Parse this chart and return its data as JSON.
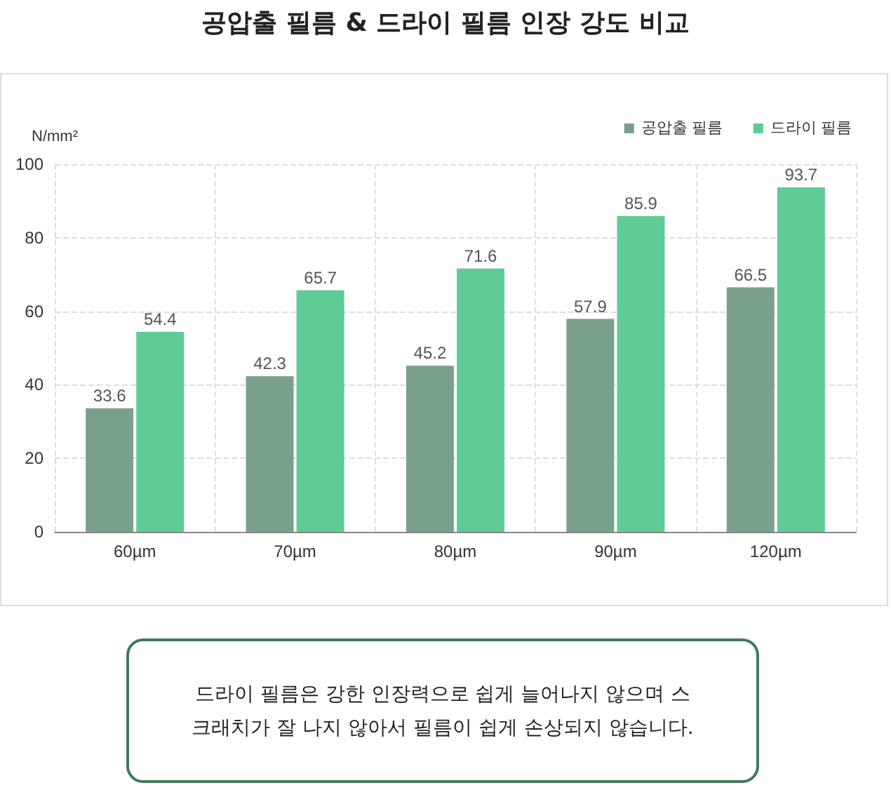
{
  "chart_data": {
    "type": "bar",
    "title": "공압출 필름 & 드라이 필름 인장 강도 비교",
    "ylabel": "N/mm²",
    "categories": [
      "60µm",
      "70µm",
      "80µm",
      "90µm",
      "120µm"
    ],
    "series": [
      {
        "name": "공압출 필름",
        "color": "#7aa08c",
        "values": [
          33.6,
          42.3,
          45.2,
          57.9,
          66.5
        ]
      },
      {
        "name": "드라이 필름",
        "color": "#5fcb95",
        "values": [
          54.4,
          65.7,
          71.6,
          85.9,
          93.7
        ]
      }
    ],
    "ylim": [
      0,
      100
    ],
    "yticks": [
      0,
      20,
      40,
      60,
      80,
      100
    ],
    "grid": true,
    "legend": "top right",
    "data_labels": true,
    "annotations": [
      "드라이 필름은 강한 인장력으로 쉽게 늘어나지 않으며 스크래치가 잘 나지 않아서 필름이 쉽게 손상되지 않습니다."
    ]
  }
}
